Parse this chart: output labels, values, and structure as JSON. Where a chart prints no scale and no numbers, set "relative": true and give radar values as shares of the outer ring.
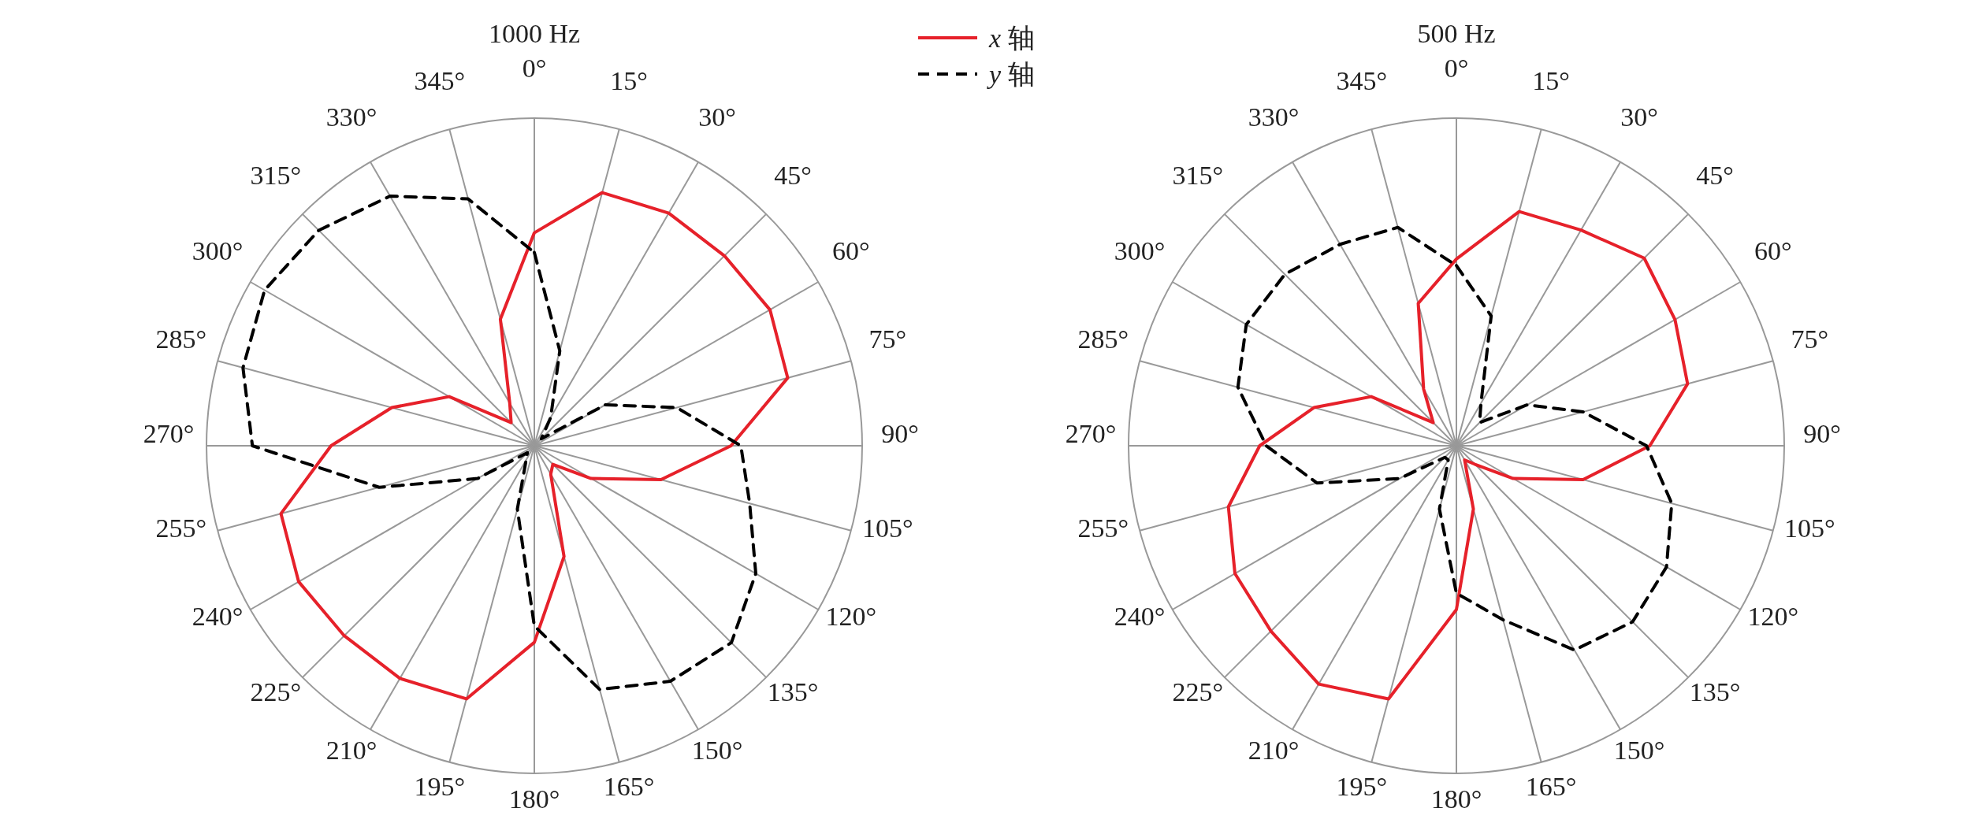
{
  "chart_data": [
    {
      "type": "radar",
      "title": "1000 Hz",
      "relative": true,
      "grid": true,
      "legend": "top right",
      "marker": "none",
      "categories": [
        "0°",
        "15°",
        "30°",
        "45°",
        "60°",
        "75°",
        "90°",
        "105°",
        "120°",
        "135°",
        "150°",
        "165°",
        "180°",
        "195°",
        "210°",
        "225°",
        "240°",
        "255°",
        "270°",
        "285°",
        "300°",
        "315°",
        "330°",
        "345°"
      ],
      "series": [
        {
          "name": "*x* 轴",
          "color": "#e6212a",
          "line_style": "solid",
          "values": [
            0.65,
            0.8,
            0.82,
            0.82,
            0.83,
            0.8,
            0.6,
            0.4,
            0.2,
            0.08,
            0.1,
            0.35,
            0.6,
            0.8,
            0.82,
            0.82,
            0.83,
            0.8,
            0.62,
            0.45,
            0.3,
            0.1,
            0.15,
            0.4
          ]
        },
        {
          "name": "*y* 轴",
          "color": "#000000",
          "line_style": "dashed",
          "values": [
            0.59,
            0.3,
            0.1,
            0.03,
            0.25,
            0.45,
            0.63,
            0.68,
            0.78,
            0.85,
            0.83,
            0.77,
            0.55,
            0.2,
            0.05,
            0.03,
            0.2,
            0.49,
            0.86,
            0.92,
            0.95,
            0.93,
            0.88,
            0.78
          ]
        }
      ]
    },
    {
      "type": "radar",
      "title": "500 Hz",
      "relative": true,
      "grid": true,
      "marker": "none",
      "categories": [
        "0°",
        "15°",
        "30°",
        "45°",
        "60°",
        "75°",
        "90°",
        "105°",
        "120°",
        "135°",
        "150°",
        "165°",
        "180°",
        "195°",
        "210°",
        "225°",
        "240°",
        "255°",
        "270°",
        "285°",
        "300°",
        "315°",
        "330°",
        "345°"
      ],
      "series": [
        {
          "color": "#e6212a",
          "line_style": "solid",
          "values": [
            0.57,
            0.74,
            0.76,
            0.81,
            0.77,
            0.73,
            0.59,
            0.4,
            0.2,
            0.08,
            0.05,
            0.2,
            0.5,
            0.8,
            0.84,
            0.8,
            0.78,
            0.72,
            0.6,
            0.45,
            0.3,
            0.1,
            0.2,
            0.45
          ]
        },
        {
          "color": "#000000",
          "line_style": "dashed",
          "values": [
            0.55,
            0.41,
            0.15,
            0.1,
            0.25,
            0.4,
            0.58,
            0.68,
            0.74,
            0.76,
            0.72,
            0.55,
            0.45,
            0.2,
            0.05,
            0.05,
            0.2,
            0.44,
            0.58,
            0.69,
            0.74,
            0.74,
            0.71,
            0.69
          ]
        }
      ]
    }
  ]
}
